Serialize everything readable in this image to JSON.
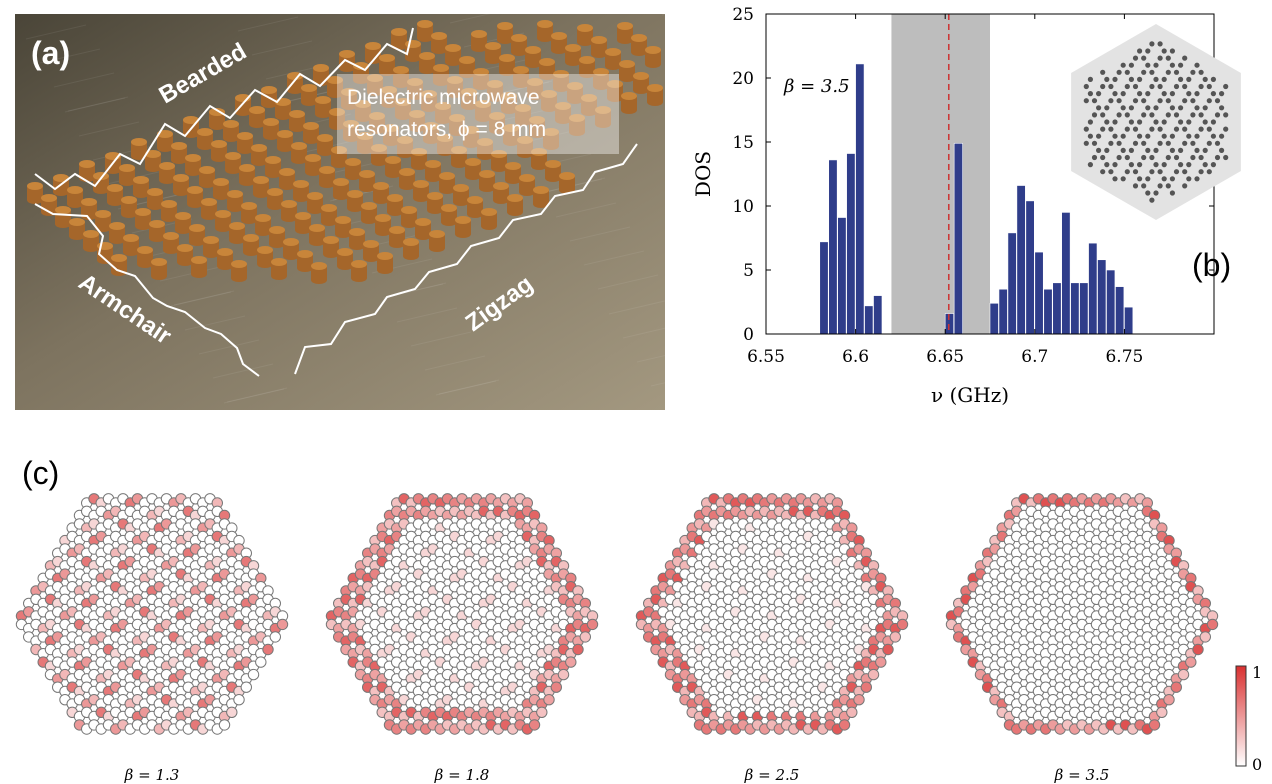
{
  "panel_a": {
    "tag": "(a)",
    "edge_labels": {
      "bearded": "Bearded",
      "armchair": "Armchair",
      "zigzag": "Zigzag"
    },
    "annotation_line1": "Dielectric microwave",
    "annotation_line2": "resonators, ϕ = 8 mm",
    "colors": {
      "resonator": "#c8853a",
      "background": "#6f6553",
      "path": "#ffffff"
    }
  },
  "panel_b": {
    "tag": "(b)",
    "beta_label": "β = 3.5",
    "colors": {
      "bar": "#2f3d8a",
      "gap": "#bdbdbd",
      "dirac_line": "#cc3333",
      "inset_bg": "#e3e3e3",
      "inset_dot": "#555555"
    }
  },
  "panel_c": {
    "tag": "(c)",
    "labels": [
      "β = 1.3",
      "β = 1.8",
      "β = 2.5",
      "β = 3.5"
    ],
    "colorbar": {
      "max_label": "1",
      "min_label": "0",
      "max_color": "#d93030",
      "min_color": "#ffffff"
    }
  },
  "chart_data": {
    "type": "bar",
    "title": "",
    "xlabel": "ν (GHz)",
    "ylabel": "DOS",
    "xlim": [
      6.55,
      6.8
    ],
    "ylim": [
      0,
      25
    ],
    "xticks": [
      "6.55",
      "6.6",
      "6.65",
      "6.7",
      "6.75"
    ],
    "xtick_values": [
      6.55,
      6.6,
      6.65,
      6.7,
      6.75
    ],
    "yticks": [
      "0",
      "5",
      "10",
      "15",
      "20",
      "25"
    ],
    "ytick_values": [
      0,
      5,
      10,
      15,
      20,
      25
    ],
    "bin_width": 0.005,
    "bin_starts": [
      6.58,
      6.585,
      6.59,
      6.595,
      6.6,
      6.605,
      6.61,
      6.615,
      6.65,
      6.655,
      6.675,
      6.68,
      6.685,
      6.69,
      6.695,
      6.7,
      6.705,
      6.71,
      6.715,
      6.72,
      6.725,
      6.73,
      6.735,
      6.74,
      6.745,
      6.75
    ],
    "values": [
      7.2,
      13.6,
      9.1,
      14.1,
      21.1,
      2.2,
      3.0,
      0,
      1.6,
      14.9,
      2.4,
      3.5,
      7.9,
      11.6,
      10.4,
      6.4,
      3.5,
      4.0,
      9.5,
      4.0,
      4.0,
      7.1,
      5.8,
      5.0,
      3.7,
      2.1
    ],
    "gap_band": [
      6.62,
      6.675
    ],
    "dirac_frequency": 6.652
  }
}
